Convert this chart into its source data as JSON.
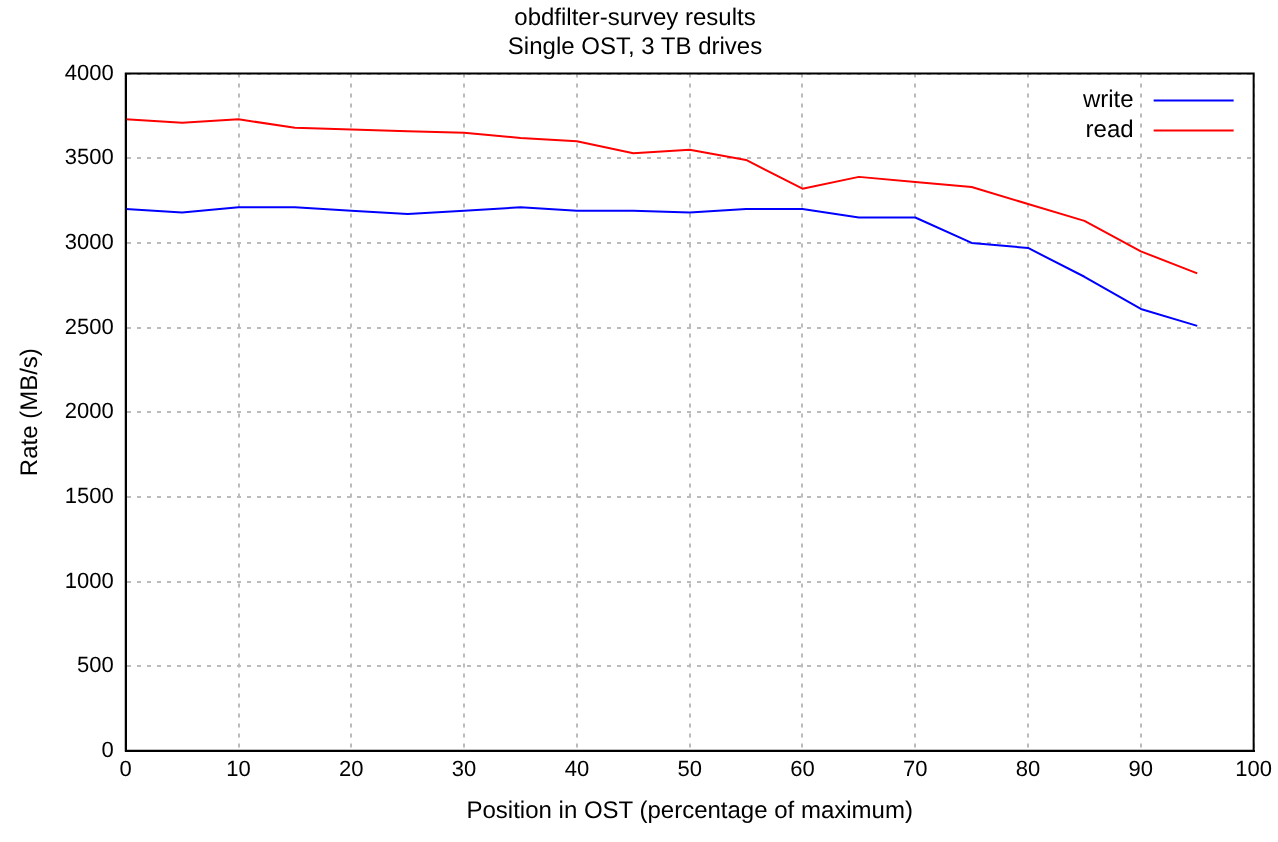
{
  "chart_data": {
    "type": "line",
    "title": "obdfilter-survey results",
    "subtitle": "Single OST, 3 TB drives",
    "xlabel": "Position in OST (percentage of maximum)",
    "ylabel": "Rate (MB/s)",
    "x": [
      0,
      5,
      10,
      15,
      20,
      25,
      30,
      35,
      40,
      45,
      50,
      55,
      60,
      65,
      70,
      75,
      80,
      85,
      90,
      95
    ],
    "series": [
      {
        "name": "write",
        "color": "#0000ff",
        "values": [
          3200,
          3180,
          3210,
          3210,
          3190,
          3170,
          3190,
          3210,
          3190,
          3190,
          3180,
          3200,
          3200,
          3150,
          3150,
          3000,
          2970,
          2800,
          2610,
          2510
        ]
      },
      {
        "name": "read",
        "color": "#ff0000",
        "values": [
          3730,
          3710,
          3730,
          3680,
          3670,
          3660,
          3650,
          3620,
          3600,
          3530,
          3550,
          3490,
          3320,
          3390,
          3360,
          3330,
          3230,
          3130,
          2950,
          2820
        ]
      }
    ],
    "xlim": [
      0,
      100
    ],
    "xticks": [
      0,
      10,
      20,
      30,
      40,
      50,
      60,
      70,
      80,
      90,
      100
    ],
    "ylim": [
      0,
      4000
    ],
    "yticks": [
      0,
      500,
      1000,
      1500,
      2000,
      2500,
      3000,
      3500,
      4000
    ],
    "grid": true,
    "legend": "top right",
    "marker": "none",
    "line_style": "solid"
  }
}
